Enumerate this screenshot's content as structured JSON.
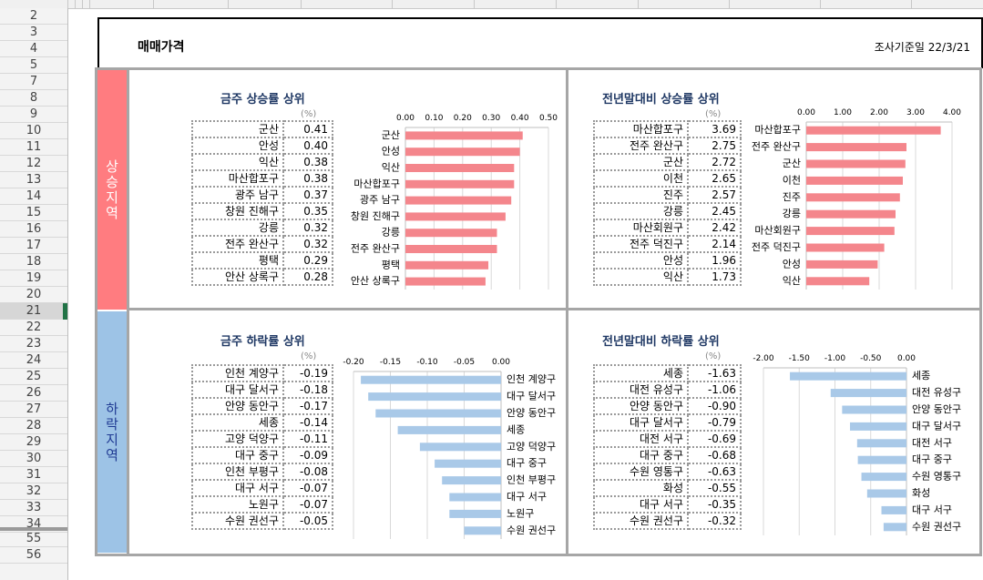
{
  "sheet": {
    "row_numbers": [
      "2",
      "3",
      "4",
      "5",
      "7",
      "8",
      "9",
      "10",
      "11",
      "12",
      "13",
      "14",
      "15",
      "16",
      "17",
      "18",
      "19",
      "20",
      "21",
      "22",
      "23",
      "24",
      "25",
      "26",
      "27",
      "28",
      "29",
      "30",
      "31",
      "32",
      "33",
      "34",
      "55",
      "56"
    ],
    "selected_row": "21"
  },
  "header": {
    "title": "매매가격",
    "survey_date": "조사기준일  22/3/21"
  },
  "bands": {
    "rise": "상승지역",
    "fall": "하락지역"
  },
  "panels": [
    {
      "title": "금주 상승률 상위",
      "unit": "(%)",
      "rows": [
        [
          "군산",
          "0.41"
        ],
        [
          "안성",
          "0.40"
        ],
        [
          "익산",
          "0.38"
        ],
        [
          "마산합포구",
          "0.38"
        ],
        [
          "광주 남구",
          "0.37"
        ],
        [
          "창원 진해구",
          "0.35"
        ],
        [
          "강릉",
          "0.32"
        ],
        [
          "전주 완산구",
          "0.32"
        ],
        [
          "평택",
          "0.29"
        ],
        [
          "안산 상록구",
          "0.28"
        ]
      ]
    },
    {
      "title": "전년말대비 상승률 상위",
      "unit": "(%)",
      "rows": [
        [
          "마산합포구",
          "3.69"
        ],
        [
          "전주 완산구",
          "2.75"
        ],
        [
          "군산",
          "2.72"
        ],
        [
          "이천",
          "2.65"
        ],
        [
          "진주",
          "2.57"
        ],
        [
          "강릉",
          "2.45"
        ],
        [
          "마산회원구",
          "2.42"
        ],
        [
          "전주 덕진구",
          "2.14"
        ],
        [
          "안성",
          "1.96"
        ],
        [
          "익산",
          "1.73"
        ]
      ]
    },
    {
      "title": "금주 하락률 상위",
      "unit": "(%)",
      "rows": [
        [
          "인천 계양구",
          "-0.19"
        ],
        [
          "대구 달서구",
          "-0.18"
        ],
        [
          "안양 동안구",
          "-0.17"
        ],
        [
          "세종",
          "-0.14"
        ],
        [
          "고양 덕양구",
          "-0.11"
        ],
        [
          "대구 중구",
          "-0.09"
        ],
        [
          "인천 부평구",
          "-0.08"
        ],
        [
          "대구 서구",
          "-0.07"
        ],
        [
          "노원구",
          "-0.07"
        ],
        [
          "수원 권선구",
          "-0.05"
        ]
      ]
    },
    {
      "title": "전년말대비 하락률 상위",
      "unit": "(%)",
      "rows": [
        [
          "세종",
          "-1.63"
        ],
        [
          "대전 유성구",
          "-1.06"
        ],
        [
          "안양 동안구",
          "-0.90"
        ],
        [
          "대구 달서구",
          "-0.79"
        ],
        [
          "대전 서구",
          "-0.69"
        ],
        [
          "대구 중구",
          "-0.68"
        ],
        [
          "수원 영통구",
          "-0.63"
        ],
        [
          "화성",
          "-0.55"
        ],
        [
          "대구 서구",
          "-0.35"
        ],
        [
          "수원 권선구",
          "-0.32"
        ]
      ]
    }
  ],
  "chart_data": [
    {
      "type": "bar",
      "orientation": "horizontal",
      "color": "#f4868c",
      "categories": [
        "군산",
        "안성",
        "익산",
        "마산합포구",
        "광주 남구",
        "창원 진해구",
        "강릉",
        "전주 완산구",
        "평택",
        "안산 상록구"
      ],
      "values": [
        0.41,
        0.4,
        0.38,
        0.38,
        0.37,
        0.35,
        0.32,
        0.32,
        0.29,
        0.28
      ],
      "xlim": [
        0,
        0.5
      ],
      "ticks": [
        "0.00",
        "0.10",
        "0.20",
        "0.30",
        "0.40",
        "0.50"
      ],
      "axis_position": "top",
      "grid": true
    },
    {
      "type": "bar",
      "orientation": "horizontal",
      "color": "#f4868c",
      "categories": [
        "마산합포구",
        "전주 완산구",
        "군산",
        "이천",
        "진주",
        "강릉",
        "마산회원구",
        "전주 덕진구",
        "안성",
        "익산"
      ],
      "values": [
        3.69,
        2.75,
        2.72,
        2.65,
        2.57,
        2.45,
        2.42,
        2.14,
        1.96,
        1.73
      ],
      "xlim": [
        0,
        4
      ],
      "ticks": [
        "0.00",
        "1.00",
        "2.00",
        "3.00",
        "4.00"
      ],
      "axis_position": "top",
      "grid": true
    },
    {
      "type": "bar",
      "orientation": "horizontal",
      "color": "#a9c9e8",
      "categories": [
        "인천 계양구",
        "대구 달서구",
        "안양 동안구",
        "세종",
        "고양 덕양구",
        "대구 중구",
        "인천 부평구",
        "대구 서구",
        "노원구",
        "수원 권선구"
      ],
      "values": [
        -0.19,
        -0.18,
        -0.17,
        -0.14,
        -0.11,
        -0.09,
        -0.08,
        -0.07,
        -0.07,
        -0.05
      ],
      "xlim": [
        -0.2,
        0
      ],
      "ticks": [
        "-0.20",
        "-0.15",
        "-0.10",
        "-0.05",
        "0.00"
      ],
      "axis_position": "top",
      "grid": true
    },
    {
      "type": "bar",
      "orientation": "horizontal",
      "color": "#a9c9e8",
      "categories": [
        "세종",
        "대전 유성구",
        "안양 동안구",
        "대구 달서구",
        "대전 서구",
        "대구 중구",
        "수원 영통구",
        "화성",
        "대구 서구",
        "수원 권선구"
      ],
      "values": [
        -1.63,
        -1.06,
        -0.9,
        -0.79,
        -0.69,
        -0.68,
        -0.63,
        -0.55,
        -0.35,
        -0.32
      ],
      "xlim": [
        -2,
        0
      ],
      "ticks": [
        "-2.00",
        "-1.50",
        "-1.00",
        "-0.50",
        "0.00"
      ],
      "axis_position": "top",
      "grid": true
    }
  ]
}
